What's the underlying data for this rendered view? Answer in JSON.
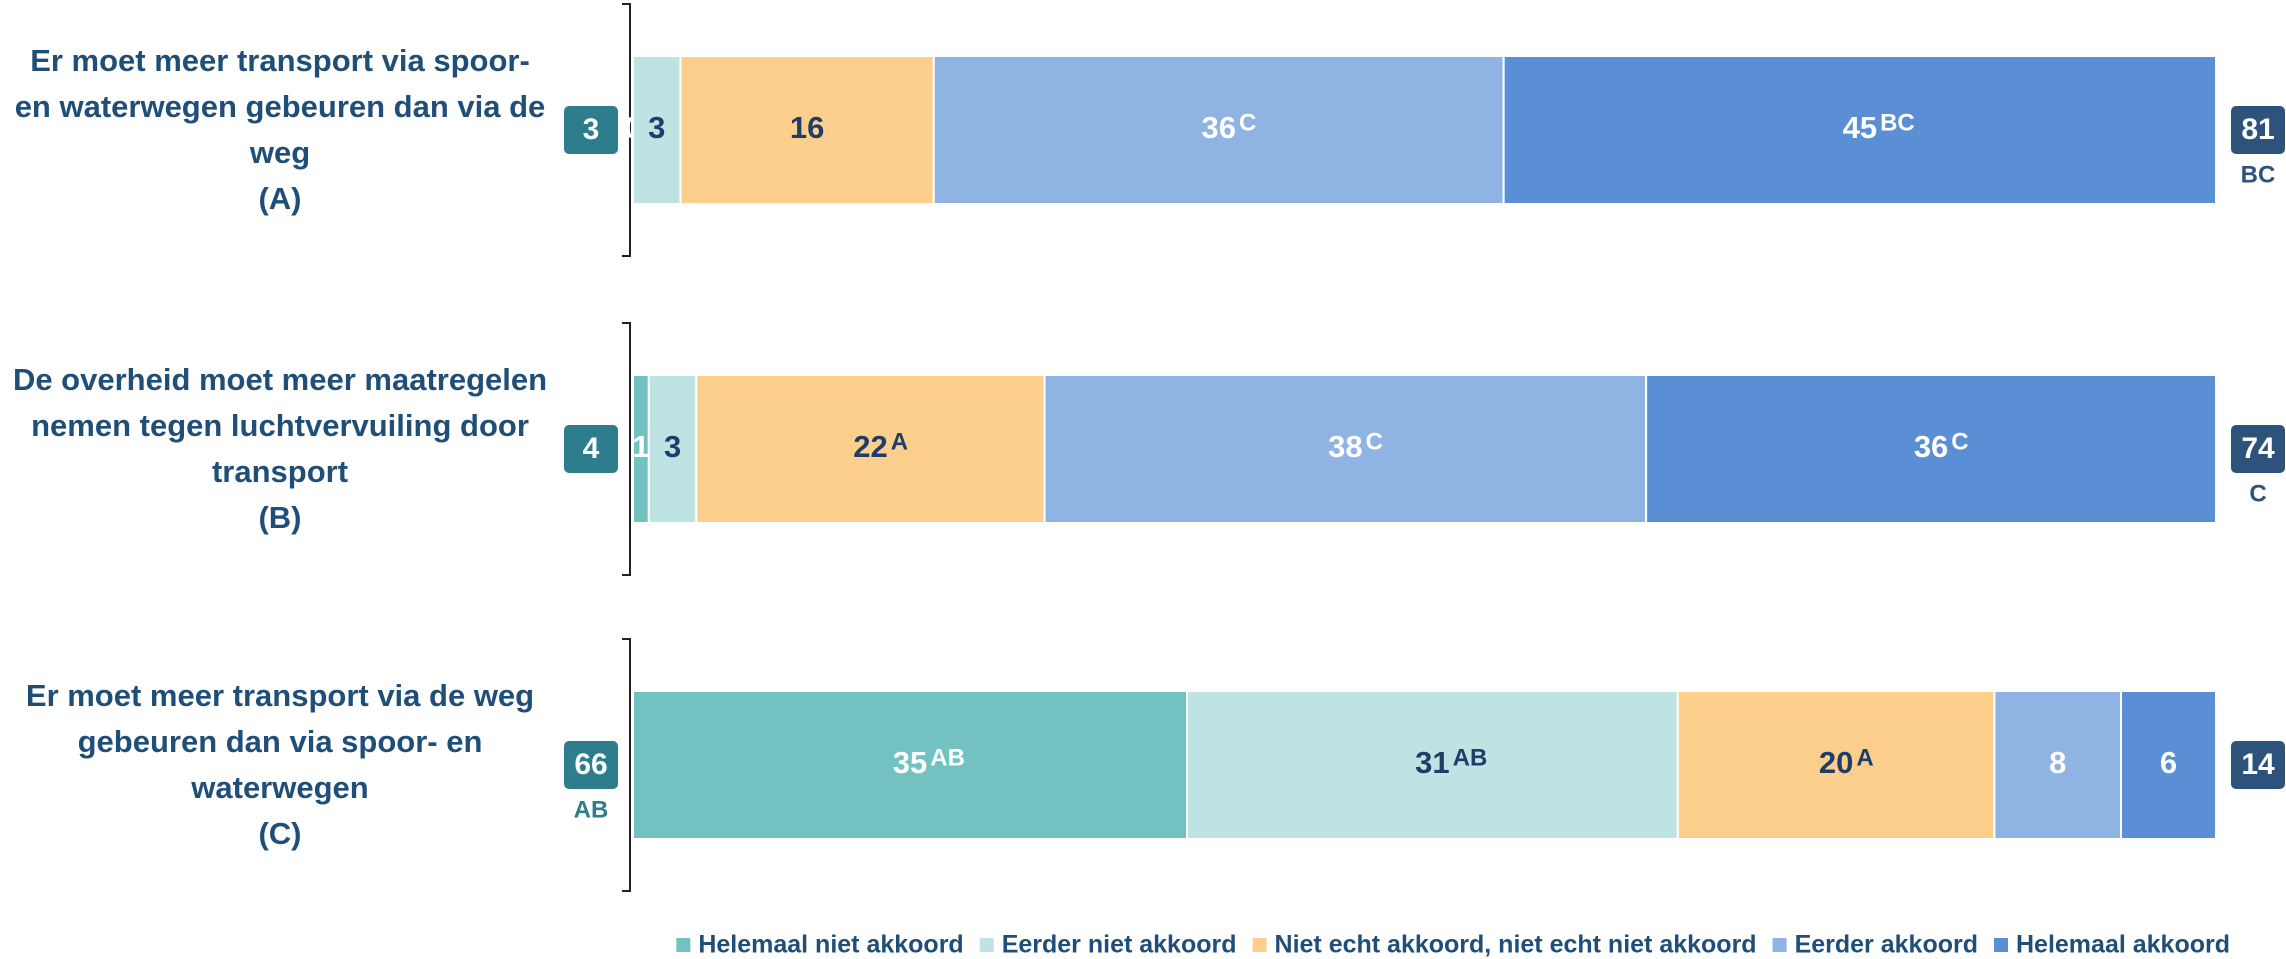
{
  "chart_data": {
    "type": "stacked_barh",
    "categories": [
      "Er moet meer transport via spoor- en waterwegen gebeuren dan via de weg",
      "De overheid moet meer maatregelen nemen tegen luchtvervuiling door transport",
      "Er moet meer transport via de weg gebeuren dan via spoor- en waterwegen"
    ],
    "category_codes": [
      "(A)",
      "(B)",
      "(C)"
    ],
    "xlim": [
      0,
      100
    ],
    "series": [
      {
        "name": "Helemaal niet akkoord",
        "color": "#72c2c2",
        "text_color": "#ffffff",
        "values": [
          0,
          1,
          35
        ],
        "significance": [
          null,
          null,
          "AB"
        ]
      },
      {
        "name": "Eerder niet akkoord",
        "color": "#bde3e3",
        "text_color": "#1f3d6b",
        "values": [
          3,
          3,
          31
        ],
        "significance": [
          null,
          null,
          "AB"
        ]
      },
      {
        "name": "Niet echt akkoord, niet echt niet akkoord",
        "color": "#fccf8c",
        "text_color": "#1f3d6b",
        "values": [
          16,
          22,
          20
        ],
        "significance": [
          null,
          "A",
          "A"
        ]
      },
      {
        "name": "Eerder akkoord",
        "color": "#8fb3e3",
        "text_color": "#ffffff",
        "values": [
          36,
          38,
          8
        ],
        "significance": [
          "C",
          "C",
          null
        ]
      },
      {
        "name": "Helemaal akkoord",
        "color": "#5a8fd6",
        "text_color": "#ffffff",
        "values": [
          45,
          36,
          6
        ],
        "significance": [
          "BC",
          "C",
          null
        ]
      }
    ],
    "disagree_totals": {
      "color": "#2e7d8c",
      "values": [
        3,
        4,
        66
      ],
      "significance": [
        null,
        null,
        "AB"
      ]
    },
    "agree_totals": {
      "color": "#2d527c",
      "values": [
        81,
        74,
        14
      ],
      "significance": [
        "BC",
        "C",
        null
      ]
    }
  }
}
